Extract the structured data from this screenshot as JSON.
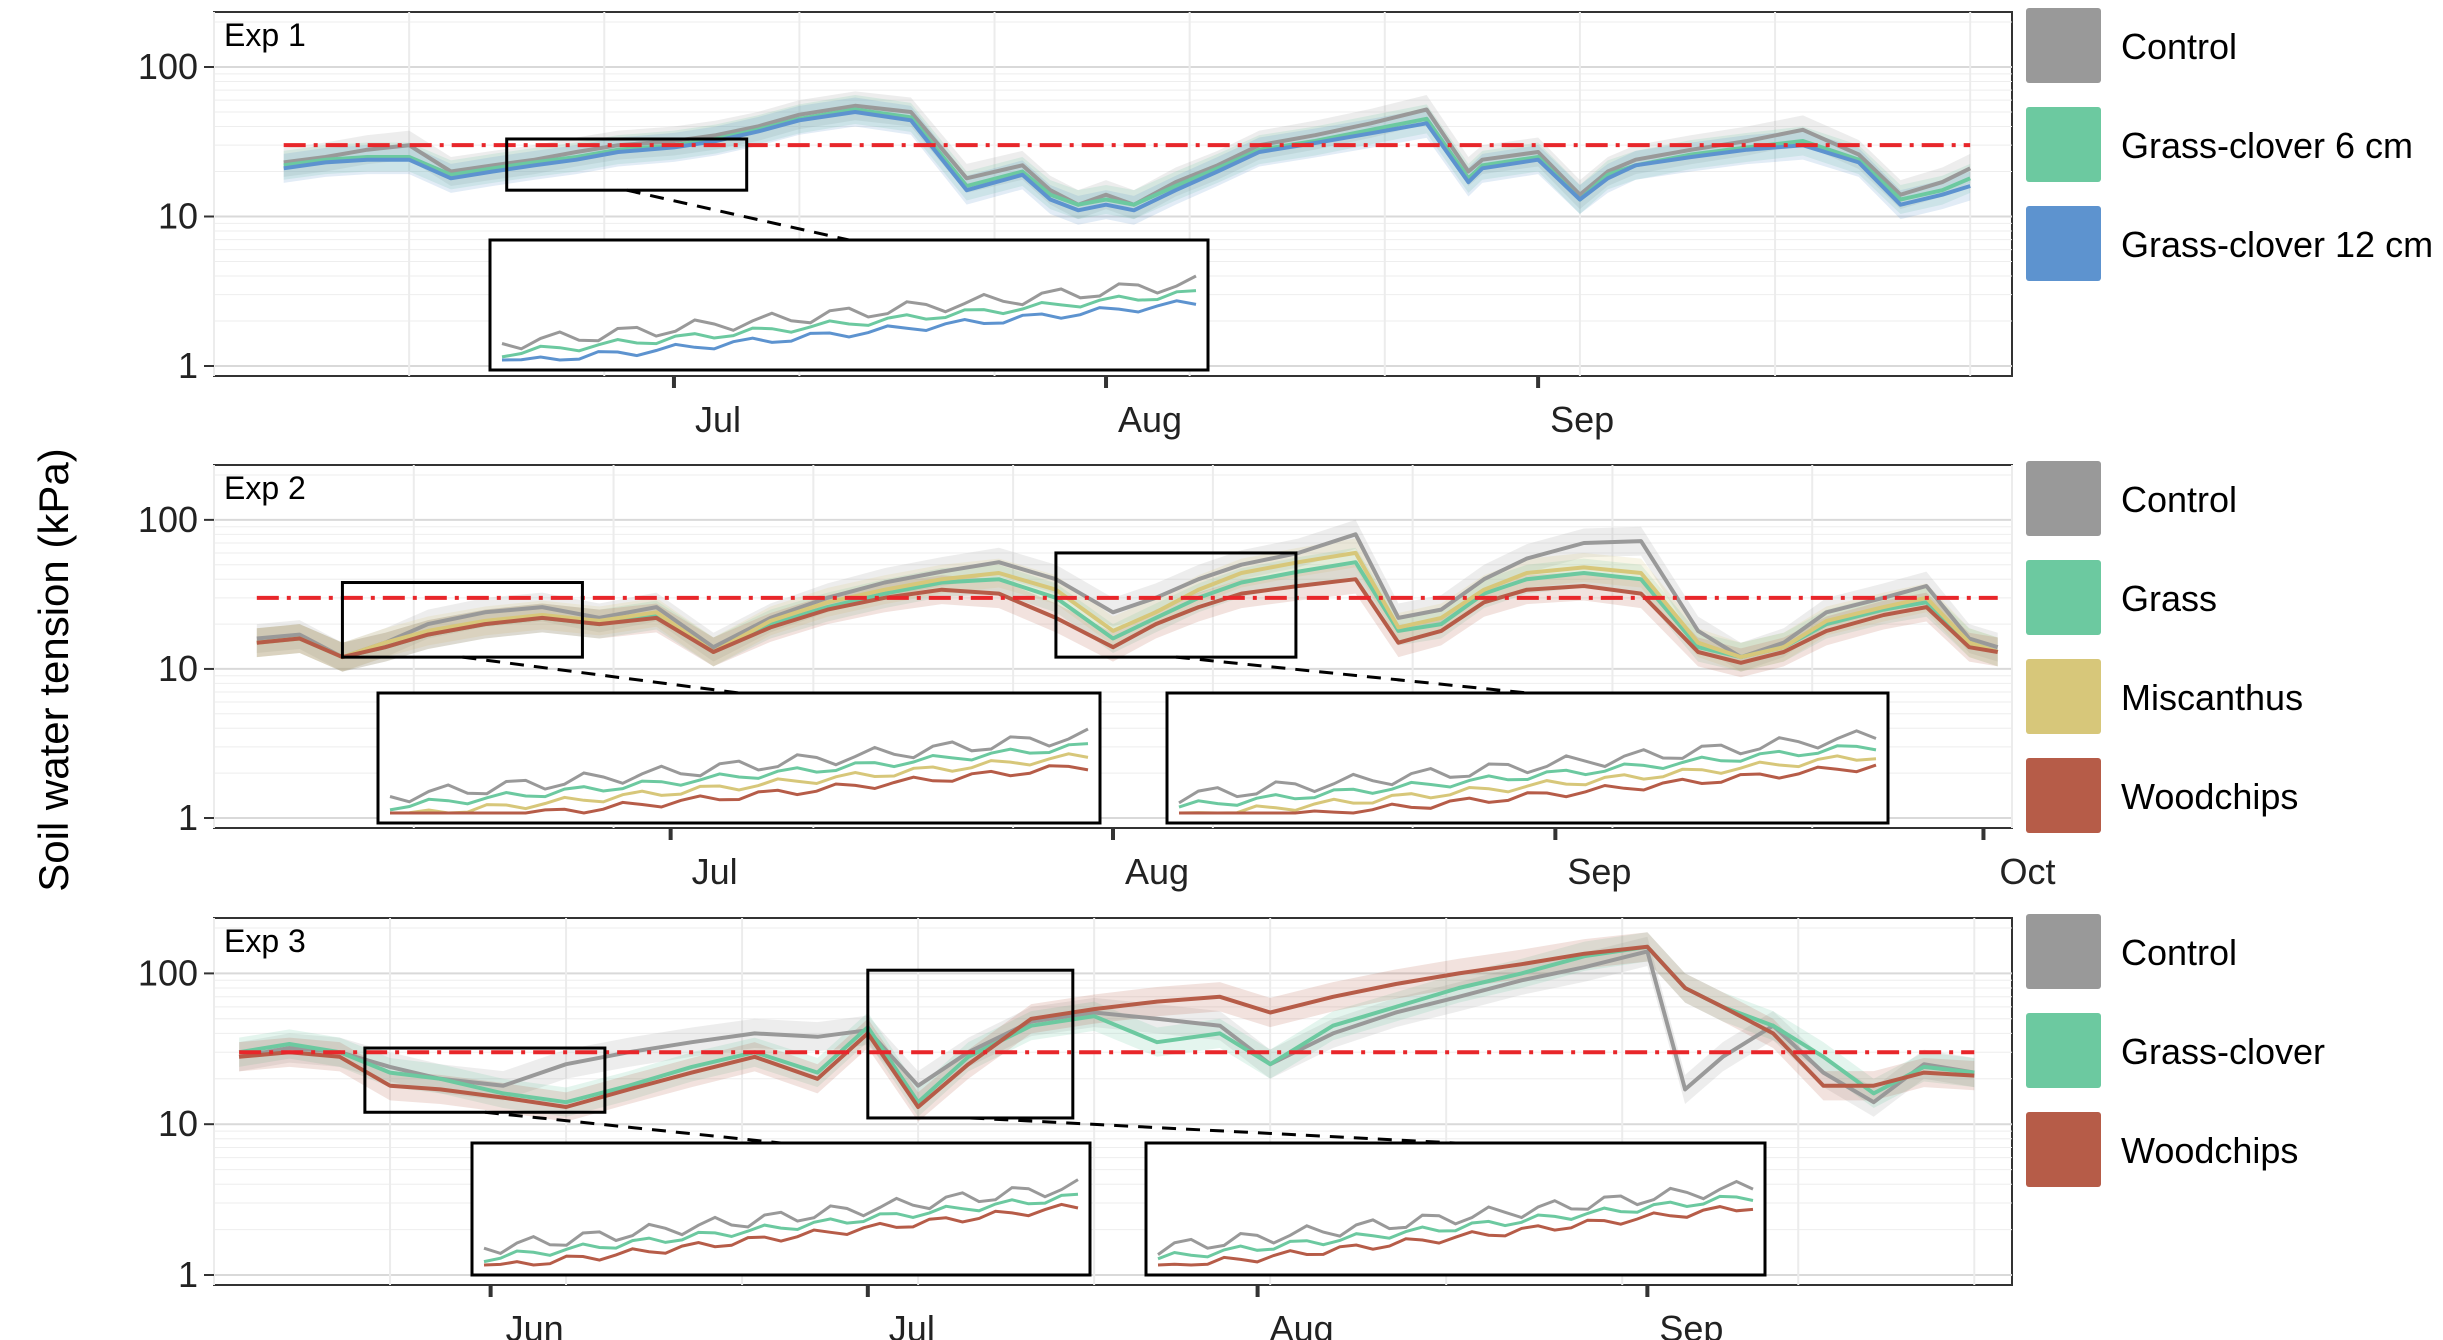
{
  "y_axis_label": "Soil water tension (kPa)",
  "threshold_kpa": 30,
  "colors": {
    "Control": "#999999",
    "Grass-clover 6 cm": "#6cc9a0",
    "Grass-clover 12 cm": "#5d93cf",
    "Grass": "#6cc9a0",
    "Miscanthus": "#d7c77a",
    "Woodchips": "#b65c48",
    "Grass-clover": "#6cc9a0",
    "threshold": "#e8262a"
  },
  "chart_data": [
    {
      "type": "line",
      "panel_label": "Exp 1",
      "y_scale": "log",
      "ylim": [
        1,
        200
      ],
      "y_ticks": [
        "1",
        "10",
        "100"
      ],
      "x_ticks": [
        "Jul",
        "Aug",
        "Sep"
      ],
      "legend": [
        "Control",
        "Grass-clover 6 cm",
        "Grass-clover 12 cm"
      ],
      "threshold": 30,
      "series": [
        {
          "name": "Control",
          "x": [
            "06-03",
            "06-06",
            "06-09",
            "06-12",
            "06-15",
            "06-18",
            "06-21",
            "06-24",
            "06-27",
            "07-01",
            "07-04",
            "07-07",
            "07-10",
            "07-14",
            "07-18",
            "07-22",
            "07-26",
            "07-28",
            "07-30",
            "08-01",
            "08-03",
            "08-06",
            "08-09",
            "08-12",
            "08-16",
            "08-20",
            "08-24",
            "08-27",
            "08-28",
            "09-01",
            "09-04",
            "09-06",
            "09-08",
            "09-12",
            "09-16",
            "09-20",
            "09-24",
            "09-27",
            "09-30",
            "10-02"
          ],
          "y": [
            23,
            25,
            28,
            30,
            20,
            22,
            24,
            27,
            30,
            32,
            35,
            40,
            48,
            55,
            50,
            18,
            22,
            15,
            12,
            14,
            12,
            17,
            22,
            30,
            35,
            42,
            52,
            20,
            24,
            27,
            14,
            20,
            24,
            28,
            32,
            38,
            26,
            14,
            17,
            21
          ]
        },
        {
          "name": "Grass-clover 6 cm",
          "x": [
            "06-03",
            "06-06",
            "06-09",
            "06-12",
            "06-15",
            "06-18",
            "06-21",
            "06-24",
            "06-27",
            "07-01",
            "07-04",
            "07-07",
            "07-10",
            "07-14",
            "07-18",
            "07-22",
            "07-26",
            "07-28",
            "07-30",
            "08-01",
            "08-03",
            "08-06",
            "08-09",
            "08-12",
            "08-16",
            "08-20",
            "08-24",
            "08-27",
            "08-28",
            "09-01",
            "09-04",
            "09-06",
            "09-08",
            "09-12",
            "09-16",
            "09-20",
            "09-24",
            "09-27",
            "09-30",
            "10-02"
          ],
          "y": [
            22,
            24,
            25,
            25,
            19,
            21,
            23,
            25,
            28,
            30,
            33,
            38,
            45,
            52,
            46,
            16,
            20,
            14,
            12,
            13,
            12,
            16,
            21,
            28,
            32,
            38,
            45,
            18,
            22,
            25,
            13,
            19,
            22,
            26,
            29,
            32,
            24,
            13,
            15,
            18
          ]
        },
        {
          "name": "Grass-clover 12 cm",
          "x": [
            "06-03",
            "06-06",
            "06-09",
            "06-12",
            "06-15",
            "06-18",
            "06-21",
            "06-24",
            "06-27",
            "07-01",
            "07-04",
            "07-07",
            "07-10",
            "07-14",
            "07-18",
            "07-22",
            "07-26",
            "07-28",
            "07-30",
            "08-01",
            "08-03",
            "08-06",
            "08-09",
            "08-12",
            "08-16",
            "08-20",
            "08-24",
            "08-27",
            "08-28",
            "09-01",
            "09-04",
            "09-06",
            "09-08",
            "09-12",
            "09-16",
            "09-20",
            "09-24",
            "09-27",
            "09-30",
            "10-02"
          ],
          "y": [
            21,
            23,
            24,
            24,
            18,
            20,
            22,
            24,
            27,
            29,
            32,
            37,
            44,
            50,
            44,
            15,
            19,
            13,
            11,
            12,
            11,
            15,
            20,
            27,
            31,
            36,
            42,
            17,
            21,
            24,
            13,
            18,
            22,
            25,
            28,
            30,
            23,
            12,
            14,
            16
          ]
        }
      ]
    },
    {
      "type": "line",
      "panel_label": "Exp 2",
      "y_scale": "log",
      "ylim": [
        1,
        200
      ],
      "y_ticks": [
        "1",
        "10",
        "100"
      ],
      "x_ticks": [
        "Jul",
        "Aug",
        "Sep",
        "Oct"
      ],
      "legend": [
        "Control",
        "Grass",
        "Miscanthus",
        "Woodchips"
      ],
      "threshold": 30,
      "series": [
        {
          "name": "Control",
          "x": [
            "06-02",
            "06-05",
            "06-08",
            "06-11",
            "06-14",
            "06-18",
            "06-22",
            "06-26",
            "06-30",
            "07-04",
            "07-08",
            "07-12",
            "07-16",
            "07-20",
            "07-24",
            "07-28",
            "08-01",
            "08-04",
            "08-07",
            "08-10",
            "08-14",
            "08-18",
            "08-21",
            "08-24",
            "08-27",
            "08-30",
            "09-03",
            "09-07",
            "09-11",
            "09-14",
            "09-17",
            "09-20",
            "09-24",
            "09-27",
            "09-30",
            "10-02"
          ],
          "y": [
            16,
            17,
            12,
            15,
            20,
            24,
            26,
            22,
            26,
            14,
            22,
            30,
            38,
            45,
            52,
            40,
            24,
            30,
            40,
            50,
            60,
            80,
            22,
            25,
            40,
            55,
            70,
            72,
            18,
            12,
            15,
            24,
            30,
            36,
            16,
            14
          ]
        },
        {
          "name": "Grass",
          "x": [
            "06-02",
            "06-05",
            "06-08",
            "06-11",
            "06-14",
            "06-18",
            "06-22",
            "06-26",
            "06-30",
            "07-04",
            "07-08",
            "07-12",
            "07-16",
            "07-20",
            "07-24",
            "07-28",
            "08-01",
            "08-04",
            "08-07",
            "08-10",
            "08-14",
            "08-18",
            "08-21",
            "08-24",
            "08-27",
            "08-30",
            "09-03",
            "09-07",
            "09-11",
            "09-14",
            "09-17",
            "09-20",
            "09-24",
            "09-27",
            "09-30",
            "10-02"
          ],
          "y": [
            15,
            16,
            12,
            14,
            17,
            20,
            22,
            20,
            23,
            13,
            20,
            26,
            32,
            38,
            40,
            30,
            16,
            22,
            30,
            38,
            45,
            52,
            18,
            20,
            32,
            40,
            44,
            40,
            14,
            12,
            14,
            20,
            25,
            28,
            15,
            13
          ]
        },
        {
          "name": "Miscanthus",
          "x": [
            "06-02",
            "06-05",
            "06-08",
            "06-11",
            "06-14",
            "06-18",
            "06-22",
            "06-26",
            "06-30",
            "07-04",
            "07-08",
            "07-12",
            "07-16",
            "07-20",
            "07-24",
            "07-28",
            "08-01",
            "08-04",
            "08-07",
            "08-10",
            "08-14",
            "08-18",
            "08-21",
            "08-24",
            "08-27",
            "08-30",
            "09-03",
            "09-07",
            "09-11",
            "09-14",
            "09-17",
            "09-20",
            "09-24",
            "09-27",
            "09-30",
            "10-02"
          ],
          "y": [
            15,
            16,
            12,
            15,
            18,
            21,
            23,
            21,
            24,
            13,
            21,
            28,
            34,
            40,
            44,
            34,
            18,
            24,
            34,
            44,
            52,
            60,
            19,
            22,
            34,
            44,
            48,
            44,
            15,
            12,
            14,
            21,
            26,
            30,
            15,
            13
          ]
        },
        {
          "name": "Woodchips",
          "x": [
            "06-02",
            "06-05",
            "06-08",
            "06-11",
            "06-14",
            "06-18",
            "06-22",
            "06-26",
            "06-30",
            "07-04",
            "07-08",
            "07-12",
            "07-16",
            "07-20",
            "07-24",
            "07-28",
            "08-01",
            "08-04",
            "08-07",
            "08-10",
            "08-14",
            "08-18",
            "08-21",
            "08-24",
            "08-27",
            "08-30",
            "09-03",
            "09-07",
            "09-11",
            "09-14",
            "09-17",
            "09-20",
            "09-24",
            "09-27",
            "09-30",
            "10-02"
          ],
          "y": [
            15,
            16,
            12,
            14,
            17,
            20,
            22,
            20,
            22,
            13,
            19,
            25,
            30,
            34,
            32,
            22,
            14,
            20,
            26,
            32,
            36,
            40,
            15,
            18,
            28,
            34,
            36,
            32,
            13,
            11,
            13,
            18,
            23,
            26,
            14,
            13
          ]
        }
      ]
    },
    {
      "type": "line",
      "panel_label": "Exp 3",
      "y_scale": "log",
      "ylim": [
        1,
        200
      ],
      "y_ticks": [
        "1",
        "10",
        "100"
      ],
      "x_ticks": [
        "Jun",
        "Jul",
        "Aug",
        "Sep"
      ],
      "legend": [
        "Control",
        "Grass-clover",
        "Woodchips"
      ],
      "threshold": 30,
      "series": [
        {
          "name": "Control",
          "x": [
            "05-12",
            "05-16",
            "05-20",
            "05-24",
            "05-28",
            "06-02",
            "06-07",
            "06-12",
            "06-17",
            "06-22",
            "06-27",
            "07-01",
            "07-05",
            "07-09",
            "07-14",
            "07-19",
            "07-24",
            "07-29",
            "08-02",
            "08-07",
            "08-12",
            "08-17",
            "08-22",
            "08-27",
            "09-01",
            "09-04",
            "09-07",
            "09-11",
            "09-15",
            "09-19",
            "09-23",
            "09-27"
          ],
          "y": [
            28,
            32,
            30,
            24,
            20,
            18,
            25,
            30,
            35,
            40,
            38,
            42,
            18,
            30,
            48,
            55,
            50,
            45,
            25,
            40,
            55,
            70,
            90,
            110,
            140,
            17,
            28,
            45,
            22,
            14,
            25,
            22
          ]
        },
        {
          "name": "Grass-clover",
          "x": [
            "05-12",
            "05-16",
            "05-20",
            "05-24",
            "05-28",
            "06-02",
            "06-07",
            "06-12",
            "06-17",
            "06-22",
            "06-27",
            "07-01",
            "07-05",
            "07-09",
            "07-14",
            "07-19",
            "07-24",
            "07-29",
            "08-02",
            "08-07",
            "08-12",
            "08-17",
            "08-22",
            "08-27",
            "09-01",
            "09-04",
            "09-07",
            "09-11",
            "09-15",
            "09-19",
            "09-23",
            "09-27"
          ],
          "y": [
            30,
            34,
            30,
            22,
            20,
            16,
            14,
            18,
            24,
            30,
            22,
            44,
            14,
            28,
            45,
            52,
            35,
            40,
            25,
            45,
            60,
            80,
            100,
            130,
            150,
            80,
            60,
            45,
            28,
            16,
            24,
            22
          ]
        },
        {
          "name": "Woodchips",
          "x": [
            "05-12",
            "05-16",
            "05-20",
            "05-24",
            "05-28",
            "06-02",
            "06-07",
            "06-12",
            "06-17",
            "06-22",
            "06-27",
            "07-01",
            "07-05",
            "07-09",
            "07-14",
            "07-19",
            "07-24",
            "07-29",
            "08-02",
            "08-07",
            "08-12",
            "08-17",
            "08-22",
            "08-27",
            "09-01",
            "09-04",
            "09-07",
            "09-11",
            "09-15",
            "09-19",
            "09-23",
            "09-27"
          ],
          "y": [
            28,
            30,
            28,
            18,
            17,
            15,
            13,
            17,
            22,
            28,
            20,
            40,
            13,
            25,
            50,
            58,
            65,
            70,
            55,
            70,
            85,
            100,
            115,
            135,
            150,
            80,
            60,
            40,
            18,
            18,
            22,
            21
          ]
        }
      ]
    }
  ]
}
